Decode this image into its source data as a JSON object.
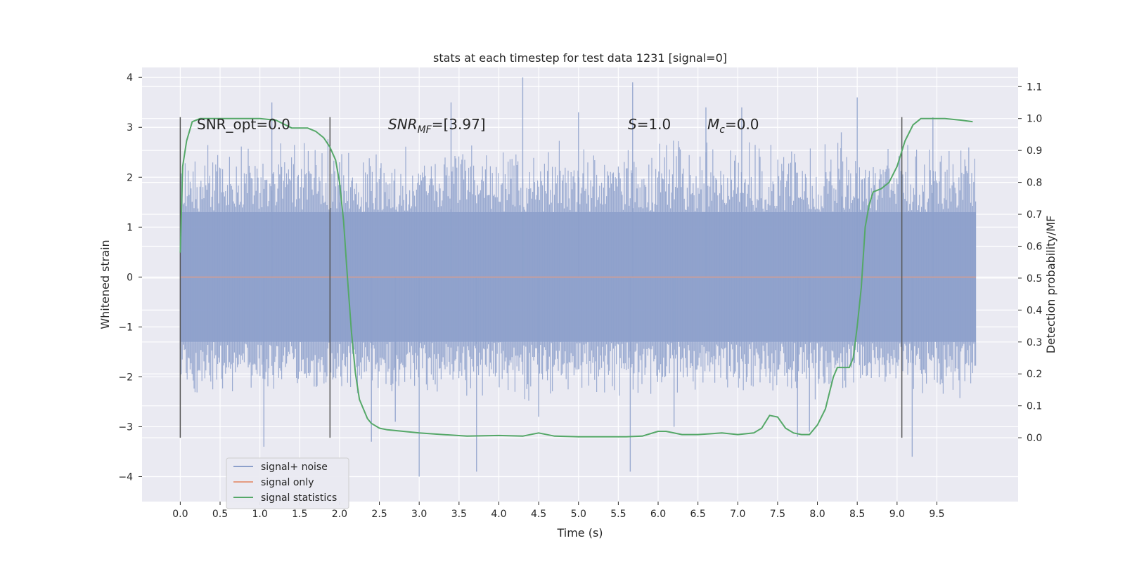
{
  "chart_data": {
    "type": "line",
    "title": "stats at each timestep for test data 1231 [signal=0]",
    "xlabel": "Time (s)",
    "ylabel_left": "Whitened strain",
    "ylabel_right": "Detection probability/MF",
    "xlim": [
      -0.48,
      10.52
    ],
    "ylim_left": [
      -4.5,
      4.2
    ],
    "ylim_right": [
      -0.2,
      1.16
    ],
    "x_ticks": [
      "0.0",
      "0.5",
      "1.0",
      "1.5",
      "2.0",
      "2.5",
      "3.0",
      "3.5",
      "4.0",
      "4.5",
      "5.0",
      "5.5",
      "6.0",
      "6.5",
      "7.0",
      "7.5",
      "8.0",
      "8.5",
      "9.0",
      "9.5"
    ],
    "y_left_ticks": [
      "4",
      "3",
      "2",
      "1",
      "0",
      "−1",
      "−2",
      "−3",
      "−4"
    ],
    "y_right_ticks": [
      "1.1",
      "1.0",
      "0.9",
      "0.8",
      "0.7",
      "0.6",
      "0.5",
      "0.4",
      "0.3",
      "0.2",
      "0.1",
      "0.0"
    ],
    "grid": true,
    "legend_position": "lower-left",
    "annotations": {
      "snr_opt": "SNR_opt=0.0",
      "snr_mf": "SNR",
      "snr_mf_sub": "MF",
      "snr_mf_value": "=[3.97]",
      "s_label": "S",
      "s_value": "=1.0",
      "mc_label": "M",
      "mc_sub": "c",
      "mc_value": "=0.0"
    },
    "vertical_markers_x": [
      0.0,
      1.88,
      9.06
    ],
    "series": [
      {
        "name": "signal+ noise",
        "color": "#8da0cb",
        "x_range": [
          0.0,
          9.99
        ],
        "envelope_core": [
          -1.3,
          1.3
        ],
        "envelope_typical": [
          -2.5,
          2.8
        ],
        "spikes": [
          [
            1.05,
            -3.4
          ],
          [
            2.7,
            -2.9
          ],
          [
            3.0,
            -4.0
          ],
          [
            3.72,
            -3.9
          ],
          [
            4.3,
            4.0
          ],
          [
            4.5,
            -2.8
          ],
          [
            5.68,
            3.9
          ],
          [
            5.65,
            -3.9
          ],
          [
            6.2,
            -3.0
          ],
          [
            7.75,
            -3.2
          ],
          [
            8.5,
            3.6
          ],
          [
            9.19,
            -3.6
          ],
          [
            9.45,
            3.2
          ],
          [
            2.0,
            2.3
          ],
          [
            2.4,
            -3.3
          ],
          [
            7.05,
            3.4
          ],
          [
            7.9,
            -3.1
          ],
          [
            3.4,
            3.5
          ],
          [
            5.0,
            3.3
          ],
          [
            6.6,
            3.4
          ],
          [
            1.15,
            3.5
          ],
          [
            8.3,
            2.9
          ]
        ]
      },
      {
        "name": "signal only",
        "color": "#e49c82",
        "x": [
          0.0,
          9.99
        ],
        "y": [
          0.0,
          0.0
        ]
      },
      {
        "name": "signal statistics",
        "color": "#55a868",
        "x": [
          0.0,
          0.03,
          0.08,
          0.15,
          0.25,
          0.4,
          0.6,
          0.8,
          1.0,
          1.2,
          1.4,
          1.5,
          1.6,
          1.7,
          1.8,
          1.88,
          1.95,
          2.0,
          2.05,
          2.1,
          2.15,
          2.2,
          2.25,
          2.3,
          2.35,
          2.4,
          2.5,
          2.6,
          2.8,
          3.0,
          3.3,
          3.6,
          4.0,
          4.3,
          4.5,
          4.7,
          5.0,
          5.3,
          5.6,
          5.8,
          6.0,
          6.1,
          6.3,
          6.5,
          6.8,
          7.0,
          7.2,
          7.3,
          7.4,
          7.5,
          7.6,
          7.7,
          7.8,
          7.9,
          8.0,
          8.1,
          8.15,
          8.2,
          8.25,
          8.3,
          8.35,
          8.4,
          8.45,
          8.5,
          8.55,
          8.6,
          8.65,
          8.7,
          8.8,
          8.9,
          9.0,
          9.05,
          9.1,
          9.2,
          9.3,
          9.4,
          9.6,
          9.8,
          9.95
        ],
        "y": [
          0.58,
          0.85,
          0.93,
          0.99,
          1.0,
          1.0,
          1.0,
          1.0,
          1.0,
          0.995,
          0.97,
          0.97,
          0.97,
          0.96,
          0.94,
          0.91,
          0.87,
          0.8,
          0.68,
          0.5,
          0.33,
          0.2,
          0.12,
          0.09,
          0.06,
          0.045,
          0.03,
          0.025,
          0.02,
          0.015,
          0.01,
          0.005,
          0.007,
          0.005,
          0.015,
          0.005,
          0.003,
          0.003,
          0.003,
          0.005,
          0.02,
          0.02,
          0.01,
          0.01,
          0.015,
          0.01,
          0.015,
          0.03,
          0.07,
          0.065,
          0.03,
          0.015,
          0.01,
          0.01,
          0.04,
          0.09,
          0.14,
          0.19,
          0.22,
          0.22,
          0.22,
          0.22,
          0.25,
          0.35,
          0.47,
          0.66,
          0.73,
          0.77,
          0.78,
          0.8,
          0.85,
          0.89,
          0.93,
          0.98,
          1.0,
          1.0,
          1.0,
          0.995,
          0.99
        ]
      }
    ]
  }
}
